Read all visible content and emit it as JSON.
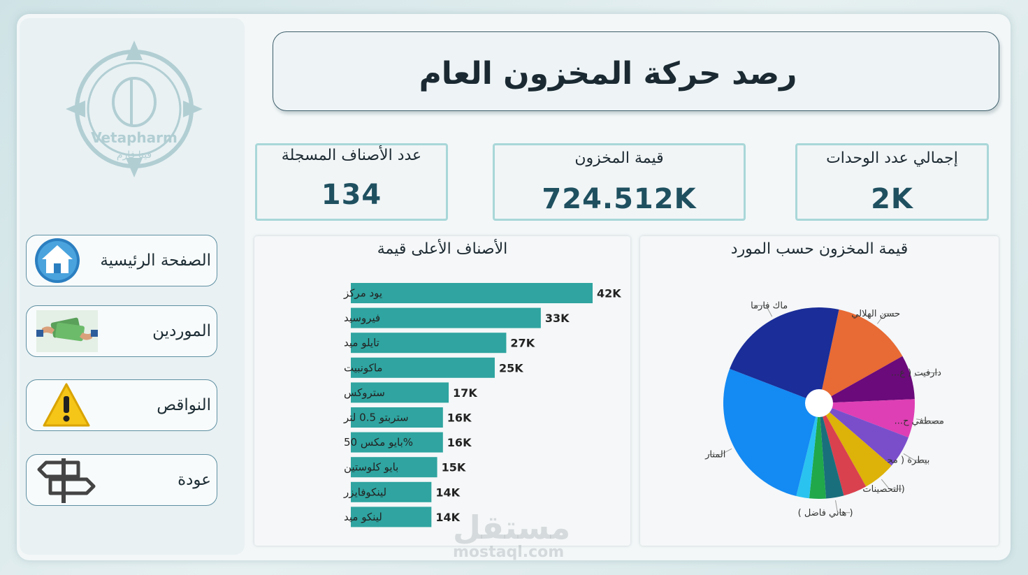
{
  "header": {
    "title": "رصد حركة المخزون العام"
  },
  "logo": {
    "name": "Vetapharm",
    "arabic_name": "فيتا فارم"
  },
  "nav": [
    {
      "label": "الصفحة الرئيسية",
      "icon": "home-icon"
    },
    {
      "label": "الموردين",
      "icon": "money-hands-icon"
    },
    {
      "label": "النواقص",
      "icon": "warning-icon"
    },
    {
      "label": "عودة",
      "icon": "signpost-icon"
    }
  ],
  "kpis": {
    "items_count": {
      "label": "عدد الأصناف المسجلة",
      "value": "134"
    },
    "inventory_value": {
      "label": "قيمة المخزون",
      "value": "724.512K"
    },
    "total_units": {
      "label": "إجمالي عدد الوحدات",
      "value": "2K"
    }
  },
  "colors": {
    "bar": "#2fa4a0",
    "accent_border": "#a9d7d9",
    "kpi_value": "#1f5060"
  },
  "watermark": {
    "ar": "مستقل",
    "en": "mostaql.com"
  },
  "chart_data": [
    {
      "type": "bar",
      "title": "الأصناف الأعلى قيمة",
      "orientation": "horizontal",
      "categories": [
        "يود مركز",
        "فيروسيد",
        "تايلو ميد",
        "ماكونبيت",
        "ستروكس",
        "ستربتو 0.5 لتر",
        "%بايو مكس 50",
        "بايو كلوستين",
        "لينكوفايزر",
        "لينكو ميد"
      ],
      "values": [
        42,
        33,
        27,
        25,
        17,
        16,
        16,
        15,
        14,
        14
      ],
      "value_labels": [
        "42K",
        "33K",
        "27K",
        "25K",
        "17K",
        "16K",
        "16K",
        "15K",
        "14K",
        "14K"
      ],
      "unit": "K"
    },
    {
      "type": "pie",
      "title": "قيمة المخزون حسب المورد",
      "donut_hole": true,
      "slices": [
        {
          "label": "حسن الهلالي",
          "value": 13.5,
          "color": "#e86a34"
        },
        {
          "label": "دارفيت ( ع...",
          "value": 7.5,
          "color": "#6b0a7a"
        },
        {
          "label": "مصطفي ح...",
          "value": 6.5,
          "color": "#de3fb4"
        },
        {
          "label": "بيطرة ( محمد مح...",
          "value": 5.5,
          "color": "#7a4ecb"
        },
        {
          "label": "(التحصينات",
          "value": 5.5,
          "color": "#ddb209"
        },
        {
          "label": "",
          "value": 4.0,
          "color": "#d9414f"
        },
        {
          "label": "( هاني فاضل )",
          "value": 3.0,
          "color": "#1a6f7c"
        },
        {
          "label": "",
          "value": 2.8,
          "color": "#20a84b"
        },
        {
          "label": "",
          "value": 2.2,
          "color": "#2ac3f0"
        },
        {
          "label": "المنار",
          "value": 27.0,
          "color": "#148af3"
        },
        {
          "label": "ماك فارما",
          "value": 22.5,
          "color": "#1a2d98"
        }
      ]
    }
  ]
}
